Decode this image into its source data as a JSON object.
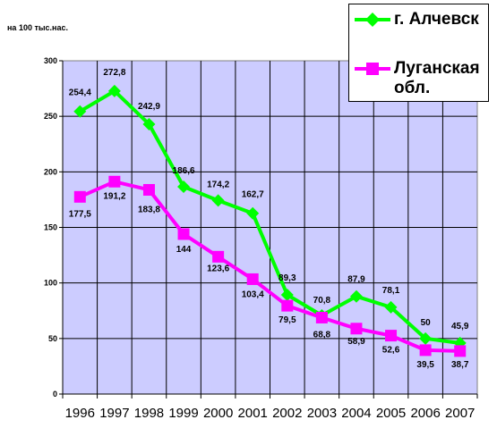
{
  "chart_data": {
    "type": "line",
    "unit_label": "на 100 тыс.нас.",
    "categories": [
      "1996",
      "1997",
      "1998",
      "1999",
      "2000",
      "2001",
      "2002",
      "2003",
      "2004",
      "2005",
      "2006",
      "2007"
    ],
    "ylim": [
      0,
      300
    ],
    "yticks": [
      "0",
      "50",
      "100",
      "150",
      "200",
      "250",
      "300"
    ],
    "grid": true,
    "legend_position": "top-right",
    "series": [
      {
        "name": "г. Алчевск",
        "color": "#00ff00",
        "marker": "diamond",
        "values": [
          254.4,
          272.8,
          242.9,
          186.6,
          174.2,
          162.7,
          89.3,
          70.8,
          87.9,
          78.1,
          50,
          45.9
        ],
        "labels": [
          "254,4",
          "272,8",
          "242,9",
          "186,6",
          "174,2",
          "162,7",
          "89,3",
          "70,8",
          "87,9",
          "78,1",
          "50",
          "45,9"
        ]
      },
      {
        "name": "Луганская обл.",
        "color": "#ff00ff",
        "marker": "square",
        "values": [
          177.5,
          191.2,
          183.8,
          144,
          123.6,
          103.4,
          79.5,
          68.8,
          58.9,
          52.6,
          39.5,
          38.7
        ],
        "labels": [
          "177,5",
          "191,2",
          "183,8",
          "144",
          "123,6",
          "103,4",
          "79,5",
          "68,8",
          "58,9",
          "52,6",
          "39,5",
          "38,7"
        ]
      }
    ],
    "colors": {
      "plot_bg": "#ccccff",
      "grid": "#000000"
    }
  }
}
